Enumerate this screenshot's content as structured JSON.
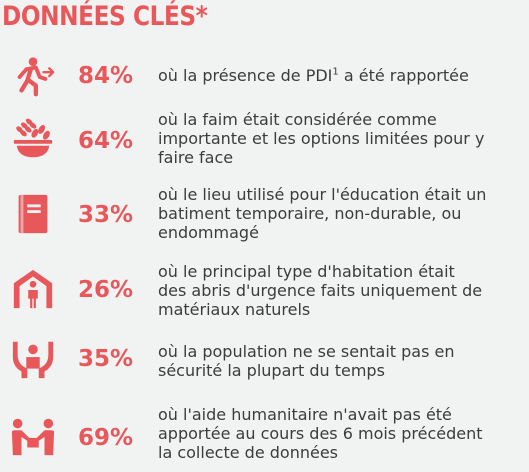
{
  "title": "DONNÉES CLÉS*",
  "items": [
    {
      "icon": "displaced-person-icon",
      "pct": "84%",
      "desc_pre": "où la présence de PDI",
      "desc_sup": "1",
      "desc_post": " a été rapportée"
    },
    {
      "icon": "food-bowl-icon",
      "pct": "64%",
      "line1": "où la faim était considérée comme",
      "line2": "importante et les options limitées pour y",
      "line3": "faire face"
    },
    {
      "icon": "book-icon",
      "pct": "33%",
      "line1": "où le lieu utilisé pour l'éducation était un",
      "line2": "batiment temporaire, non-durable, ou",
      "line3": "endommagé"
    },
    {
      "icon": "shelter-icon",
      "pct": "26%",
      "line1": "où le principal type d'habitation était",
      "line2": "des abris d'urgence faits uniquement de",
      "line3": "matériaux naturels"
    },
    {
      "icon": "protection-icon",
      "pct": "35%",
      "line1": "où la population ne se sentait pas en",
      "line2": "sécurité la plupart du temps"
    },
    {
      "icon": "aid-exchange-icon",
      "pct": "69%",
      "line1": "où l'aide humanitaire n'avait pas été",
      "line2": "apportée au cours des 6 mois précédent",
      "line3": "la collecte de données"
    }
  ],
  "accent": "#e8575a"
}
